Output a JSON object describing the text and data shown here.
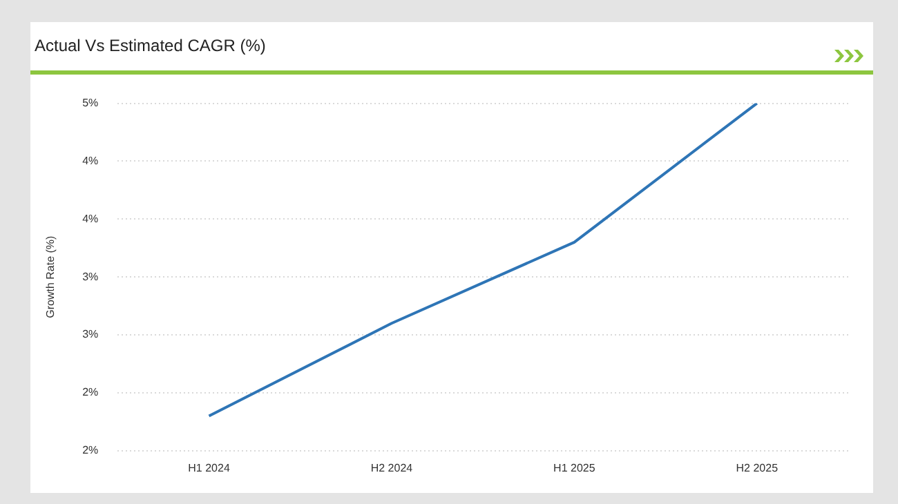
{
  "chart_data": {
    "type": "line",
    "title": "Actual Vs Estimated CAGR (%)",
    "ylabel": "Growth Rate (%)",
    "categories": [
      "H1 2024",
      "H2 2024",
      "H1 2025",
      "H2 2025"
    ],
    "series": [
      {
        "color": "#2e75b6",
        "values": [
          2.1,
          2.9,
          3.6,
          4.8
        ]
      }
    ],
    "ylim": [
      1.8,
      4.8
    ],
    "yticks": [
      {
        "value": 1.8,
        "label": "2%"
      },
      {
        "value": 2.3,
        "label": "2%"
      },
      {
        "value": 2.8,
        "label": "3%"
      },
      {
        "value": 3.3,
        "label": "3%"
      },
      {
        "value": 3.8,
        "label": "4%"
      },
      {
        "value": 4.3,
        "label": "4%"
      },
      {
        "value": 4.8,
        "label": "5%"
      }
    ],
    "grid": "y",
    "legend": false,
    "marker": "none",
    "line_style": "solid"
  }
}
